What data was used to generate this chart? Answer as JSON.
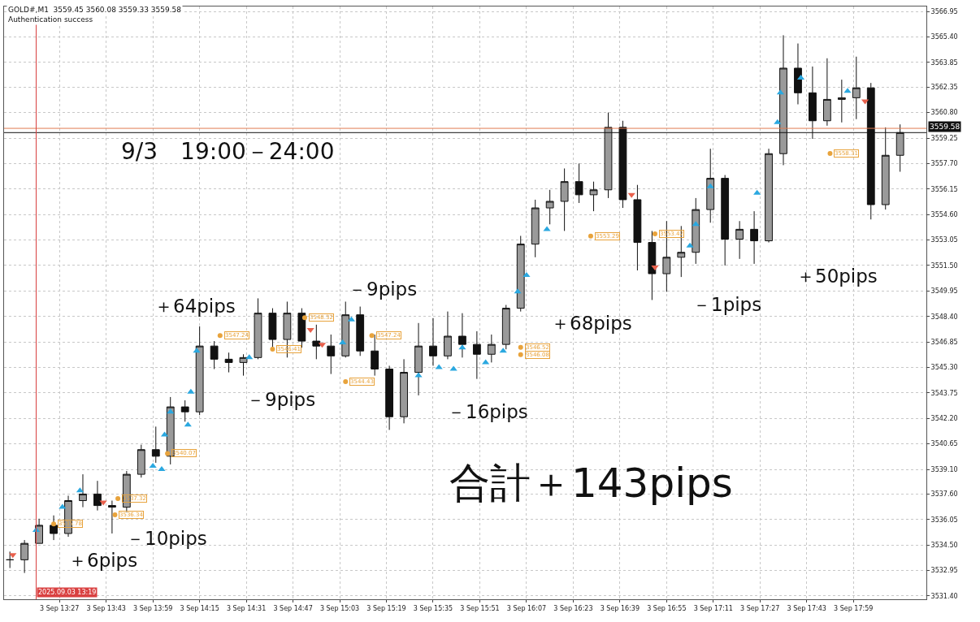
{
  "chart_data": {
    "type": "candlestick",
    "title": "GOLD#,M1  3559.45 3560.08 3559.33 3559.58",
    "subtitle": "9/3　19:00－24:00",
    "color": "#111111",
    "x": [
      "2025-09-03T13:10",
      "2025-09-03T13:15",
      "2025-09-03T13:20",
      "2025-09-03T13:25",
      "2025-09-03T13:30",
      "2025-09-03T13:35",
      "2025-09-03T13:40",
      "2025-09-03T13:45",
      "2025-09-03T13:50",
      "2025-09-03T13:55",
      "2025-09-03T14:00",
      "2025-09-03T14:05",
      "2025-09-03T14:10",
      "2025-09-03T14:15",
      "2025-09-03T14:20",
      "2025-09-03T14:25",
      "2025-09-03T14:30",
      "2025-09-03T14:35",
      "2025-09-03T14:40",
      "2025-09-03T14:45",
      "2025-09-03T14:50",
      "2025-09-03T14:55",
      "2025-09-03T15:00",
      "2025-09-03T15:05",
      "2025-09-03T15:10",
      "2025-09-03T15:15",
      "2025-09-03T15:20",
      "2025-09-03T15:25",
      "2025-09-03T15:30",
      "2025-09-03T15:35",
      "2025-09-03T15:40",
      "2025-09-03T15:45",
      "2025-09-03T15:50",
      "2025-09-03T15:55",
      "2025-09-03T16:00",
      "2025-09-03T16:05",
      "2025-09-03T16:10",
      "2025-09-03T16:15",
      "2025-09-03T16:20",
      "2025-09-03T16:25",
      "2025-09-03T16:30",
      "2025-09-03T16:35",
      "2025-09-03T16:40",
      "2025-09-03T16:45",
      "2025-09-03T16:50",
      "2025-09-03T16:55",
      "2025-09-03T17:00",
      "2025-09-03T17:05",
      "2025-09-03T17:10",
      "2025-09-03T17:15",
      "2025-09-03T17:20",
      "2025-09-03T17:25",
      "2025-09-03T17:30",
      "2025-09-03T17:35",
      "2025-09-03T17:40",
      "2025-09-03T17:45",
      "2025-09-03T17:50",
      "2025-09-03T17:55",
      "2025-09-03T18:00",
      "2025-09-03T18:05",
      "2025-09-03T18:10",
      "2025-09-03T18:15"
    ],
    "ohlc": [
      [
        3533.6,
        3534.1,
        3533.1,
        3533.6
      ],
      [
        3533.6,
        3534.8,
        3532.8,
        3534.6
      ],
      [
        3534.6,
        3536.1,
        3534.6,
        3535.7
      ],
      [
        3535.7,
        3536.3,
        3534.8,
        3535.2
      ],
      [
        3535.2,
        3537.5,
        3535.0,
        3537.2
      ],
      [
        3537.2,
        3538.8,
        3536.8,
        3537.6
      ],
      [
        3537.6,
        3538.4,
        3536.6,
        3536.9
      ],
      [
        3536.9,
        3537.2,
        3535.2,
        3536.8
      ],
      [
        3536.8,
        3539.0,
        3536.5,
        3538.8
      ],
      [
        3538.8,
        3540.6,
        3538.6,
        3540.3
      ],
      [
        3540.3,
        3541.7,
        3539.5,
        3539.9
      ],
      [
        3539.9,
        3543.5,
        3539.4,
        3542.9
      ],
      [
        3542.9,
        3543.3,
        3542.0,
        3542.6
      ],
      [
        3542.6,
        3547.8,
        3542.4,
        3546.6
      ],
      [
        3546.6,
        3546.9,
        3545.2,
        3545.8
      ],
      [
        3545.8,
        3546.2,
        3545.0,
        3545.6
      ],
      [
        3545.6,
        3546.1,
        3544.8,
        3545.9
      ],
      [
        3545.9,
        3549.5,
        3545.8,
        3548.6
      ],
      [
        3548.6,
        3548.9,
        3546.4,
        3547.0
      ],
      [
        3547.0,
        3549.3,
        3545.9,
        3548.6
      ],
      [
        3548.6,
        3548.9,
        3546.5,
        3546.9
      ],
      [
        3546.9,
        3547.9,
        3545.8,
        3546.6
      ],
      [
        3546.6,
        3547.3,
        3544.9,
        3546.0
      ],
      [
        3546.0,
        3549.3,
        3545.9,
        3548.5
      ],
      [
        3548.5,
        3549.0,
        3546.0,
        3546.3
      ],
      [
        3546.3,
        3547.3,
        3544.8,
        3545.2
      ],
      [
        3545.2,
        3545.4,
        3541.5,
        3542.3
      ],
      [
        3542.3,
        3545.8,
        3541.9,
        3545.0
      ],
      [
        3545.0,
        3548.0,
        3543.6,
        3546.6
      ],
      [
        3546.6,
        3548.3,
        3545.4,
        3546.0
      ],
      [
        3546.0,
        3548.7,
        3545.8,
        3547.2
      ],
      [
        3547.2,
        3548.6,
        3545.9,
        3546.7
      ],
      [
        3546.7,
        3547.5,
        3544.6,
        3546.1
      ],
      [
        3546.1,
        3547.3,
        3545.6,
        3546.7
      ],
      [
        3546.7,
        3549.1,
        3546.4,
        3548.9
      ],
      [
        3548.9,
        3553.3,
        3548.7,
        3552.8
      ],
      [
        3552.8,
        3555.5,
        3552.0,
        3555.0
      ],
      [
        3555.0,
        3556.1,
        3554.0,
        3555.4
      ],
      [
        3555.4,
        3557.4,
        3553.6,
        3556.6
      ],
      [
        3556.6,
        3557.7,
        3555.3,
        3555.8
      ],
      [
        3555.8,
        3556.6,
        3554.8,
        3556.1
      ],
      [
        3556.1,
        3560.8,
        3555.6,
        3559.9
      ],
      [
        3559.9,
        3560.3,
        3555.0,
        3555.5
      ],
      [
        3555.5,
        3556.4,
        3551.2,
        3552.9
      ],
      [
        3552.9,
        3553.6,
        3549.4,
        3551.0
      ],
      [
        3551.0,
        3554.2,
        3549.9,
        3552.0
      ],
      [
        3552.0,
        3553.9,
        3550.8,
        3552.3
      ],
      [
        3552.3,
        3555.6,
        3551.6,
        3554.9
      ],
      [
        3554.9,
        3558.6,
        3554.1,
        3556.8
      ],
      [
        3556.8,
        3557.0,
        3551.5,
        3553.1
      ],
      [
        3553.1,
        3554.2,
        3551.9,
        3553.7
      ],
      [
        3553.7,
        3554.8,
        3551.6,
        3553.0
      ],
      [
        3553.0,
        3558.6,
        3552.9,
        3558.3
      ],
      [
        3558.3,
        3565.5,
        3557.6,
        3563.5
      ],
      [
        3563.5,
        3565.0,
        3561.3,
        3562.0
      ],
      [
        3562.0,
        3563.6,
        3559.2,
        3560.3
      ],
      [
        3560.3,
        3564.1,
        3560.0,
        3561.6
      ],
      [
        3561.6,
        3562.8,
        3560.2,
        3561.7
      ],
      [
        3561.7,
        3564.2,
        3560.4,
        3562.3
      ],
      [
        3562.3,
        3562.6,
        3554.3,
        3555.2
      ],
      [
        3555.2,
        3559.9,
        3554.9,
        3558.2
      ],
      [
        3558.2,
        3560.08,
        3557.2,
        3559.58
      ]
    ],
    "series": [
      {
        "type": "scatter",
        "marker": "triangle",
        "color": "#2aa8e0",
        "x": [
          "2025-09-03T13:19",
          "2025-09-03T13:28",
          "2025-09-03T13:34",
          "2025-09-03T13:59",
          "2025-09-03T14:02",
          "2025-09-03T14:03",
          "2025-09-03T14:05",
          "2025-09-03T14:11",
          "2025-09-03T14:12",
          "2025-09-03T14:14",
          "2025-09-03T14:32",
          "2025-09-03T15:04",
          "2025-09-03T15:07",
          "2025-09-03T15:30",
          "2025-09-03T15:37",
          "2025-09-03T15:42",
          "2025-09-03T15:45",
          "2025-09-03T15:53",
          "2025-09-03T15:59",
          "2025-09-03T16:04",
          "2025-09-03T16:07",
          "2025-09-03T16:14",
          "2025-09-03T17:03",
          "2025-09-03T17:05",
          "2025-09-03T17:10",
          "2025-09-03T17:26",
          "2025-09-03T17:33",
          "2025-09-03T17:34",
          "2025-09-03T17:41",
          "2025-09-03T17:57"
        ],
        "values": [
          3535.4,
          3536.8,
          3537.8,
          3539.3,
          3539.1,
          3541.2,
          3542.6,
          3541.8,
          3543.8,
          3546.3,
          3545.9,
          3546.8,
          3548.2,
          3544.8,
          3545.3,
          3545.2,
          3546.5,
          3545.6,
          3546.3,
          3549.9,
          3550.9,
          3553.7,
          3552.7,
          3554.0,
          3556.3,
          3555.9,
          3560.2,
          3562.0,
          3562.9,
          3562.1
        ]
      },
      {
        "type": "scatter",
        "marker": "triangle",
        "color": "#e8604c",
        "x": [
          "2025-09-03T13:11",
          "2025-09-03T13:42",
          "2025-09-03T14:53",
          "2025-09-03T14:57",
          "2025-09-03T16:43",
          "2025-09-03T16:51",
          "2025-09-03T18:03"
        ],
        "values": [
          3533.9,
          3537.1,
          3547.6,
          3546.7,
          3555.8,
          3551.4,
          3561.5
        ]
      },
      {
        "type": "scatter",
        "marker": "circle",
        "color": "#e8a33c",
        "x": [
          "2025-09-03T13:25",
          "2025-09-03T13:47",
          "2025-09-03T13:46",
          "2025-09-03T14:04",
          "2025-09-03T14:22",
          "2025-09-03T14:40",
          "2025-09-03T14:51",
          "2025-09-03T15:14",
          "2025-09-03T15:05",
          "2025-09-03T16:05",
          "2025-09-03T16:05",
          "2025-09-03T16:29",
          "2025-09-03T16:51",
          "2025-09-03T17:51"
        ],
        "values": [
          3535.78,
          3537.32,
          3536.34,
          3540.07,
          3547.24,
          3546.41,
          3548.32,
          3547.24,
          3544.43,
          3546.52,
          3546.08,
          3553.29,
          3553.42,
          3558.31
        ],
        "value_labels": [
          "3535.78",
          "3537.32",
          "3536.34",
          "3540.07",
          "3547.24",
          "3546.41",
          "3548.32",
          "3547.24",
          "3544.43",
          "3546.52",
          "3546.08",
          "3553.29",
          "3553.42",
          "3558.31"
        ]
      }
    ],
    "annotations": [
      "Authentication success",
      "合計＋143pips",
      "＋6pips",
      "－10pips",
      "＋64pips",
      "－9pips",
      "－9pips",
      "－16pips",
      "＋68pips",
      "－1pips",
      "＋50pips"
    ],
    "ref_lines": [
      {
        "axis": "y",
        "value": 3559.58,
        "label": "3559.58",
        "color": "#111111"
      },
      {
        "axis": "y",
        "value": 3559.84,
        "color": "#e07a50"
      },
      {
        "axis": "x",
        "value": "2025-09-03T13:19",
        "label": "2025.09.03 13:19",
        "color": "#d94040"
      }
    ],
    "xlim": [
      "2025-09-03T13:08",
      "2025-09-03T18:24"
    ],
    "xticks": [
      {
        "value": "2025-09-03T13:27",
        "label": "3 Sep 13:27"
      },
      {
        "value": "2025-09-03T13:43",
        "label": "3 Sep 13:43"
      },
      {
        "value": "2025-09-03T13:59",
        "label": "3 Sep 13:59"
      },
      {
        "value": "2025-09-03T14:15",
        "label": "3 Sep 14:15"
      },
      {
        "value": "2025-09-03T14:31",
        "label": "3 Sep 14:31"
      },
      {
        "value": "2025-09-03T14:47",
        "label": "3 Sep 14:47"
      },
      {
        "value": "2025-09-03T15:03",
        "label": "3 Sep 15:03"
      },
      {
        "value": "2025-09-03T15:19",
        "label": "3 Sep 15:19"
      },
      {
        "value": "2025-09-03T15:35",
        "label": "3 Sep 15:35"
      },
      {
        "value": "2025-09-03T15:51",
        "label": "3 Sep 15:51"
      },
      {
        "value": "2025-09-03T16:07",
        "label": "3 Sep 16:07"
      },
      {
        "value": "2025-09-03T16:23",
        "label": "3 Sep 16:23"
      },
      {
        "value": "2025-09-03T16:39",
        "label": "3 Sep 16:39"
      },
      {
        "value": "2025-09-03T16:55",
        "label": "3 Sep 16:55"
      },
      {
        "value": "2025-09-03T17:11",
        "label": "3 Sep 17:11"
      },
      {
        "value": "2025-09-03T17:27",
        "label": "3 Sep 17:27"
      },
      {
        "value": "2025-09-03T17:43",
        "label": "3 Sep 17:43"
      },
      {
        "value": "2025-09-03T17:59",
        "label": "3 Sep 17:59"
      }
    ],
    "ylim": [
      3531.2,
      3567.25
    ],
    "yticks": [
      3566.95,
      {
        "value": 3565.4,
        "label": "3565.40"
      },
      3563.85,
      3562.35,
      {
        "value": 3560.8,
        "label": "3560.80"
      },
      3559.25,
      {
        "value": 3557.7,
        "label": "3557.70"
      },
      3556.15,
      {
        "value": 3554.6,
        "label": "3554.60"
      },
      3553.05,
      {
        "value": 3551.5,
        "label": "3551.50"
      },
      3549.95,
      {
        "value": 3548.4,
        "label": "3548.40"
      },
      3546.85,
      {
        "value": 3545.3,
        "label": "3545.30"
      },
      3543.75,
      {
        "value": 3542.2,
        "label": "3542.20"
      },
      3540.65,
      {
        "value": 3539.1,
        "label": "3539.10"
      },
      {
        "value": 3537.6,
        "label": "3537.60"
      },
      3536.05,
      {
        "value": 3534.5,
        "label": "3534.50"
      },
      3532.95,
      {
        "value": 3531.4,
        "label": "3531.40"
      }
    ],
    "grid": true
  }
}
